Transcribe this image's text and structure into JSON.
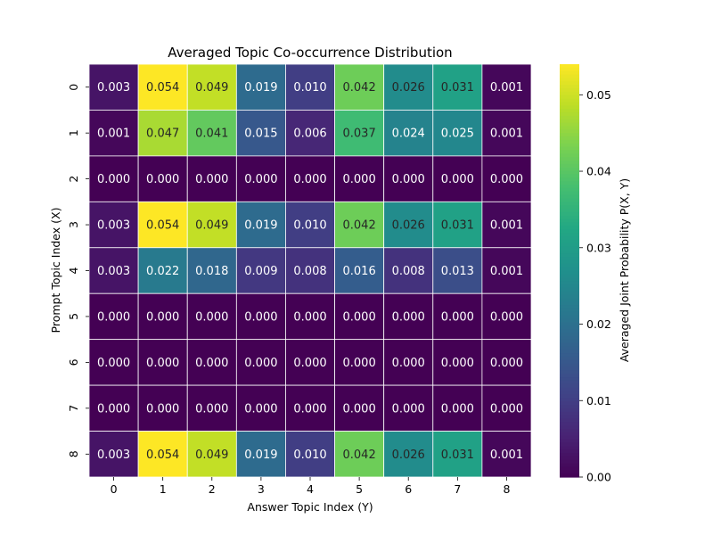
{
  "chart_data": {
    "type": "heatmap",
    "title": "Averaged Topic Co-occurrence Distribution",
    "xlabel": "Answer Topic Index (Y)",
    "ylabel": "Prompt Topic Index (X)",
    "x_categories": [
      "0",
      "1",
      "2",
      "3",
      "4",
      "5",
      "6",
      "7",
      "8"
    ],
    "y_categories": [
      "0",
      "1",
      "2",
      "3",
      "4",
      "5",
      "6",
      "7",
      "8"
    ],
    "values": [
      [
        0.003,
        0.054,
        0.049,
        0.019,
        0.01,
        0.042,
        0.026,
        0.031,
        0.001
      ],
      [
        0.001,
        0.047,
        0.041,
        0.015,
        0.006,
        0.037,
        0.024,
        0.025,
        0.001
      ],
      [
        0.0,
        0.0,
        0.0,
        0.0,
        0.0,
        0.0,
        0.0,
        0.0,
        0.0
      ],
      [
        0.003,
        0.054,
        0.049,
        0.019,
        0.01,
        0.042,
        0.026,
        0.031,
        0.001
      ],
      [
        0.003,
        0.022,
        0.018,
        0.009,
        0.008,
        0.016,
        0.008,
        0.013,
        0.001
      ],
      [
        0.0,
        0.0,
        0.0,
        0.0,
        0.0,
        0.0,
        0.0,
        0.0,
        0.0
      ],
      [
        0.0,
        0.0,
        0.0,
        0.0,
        0.0,
        0.0,
        0.0,
        0.0,
        0.0
      ],
      [
        0.0,
        0.0,
        0.0,
        0.0,
        0.0,
        0.0,
        0.0,
        0.0,
        0.0
      ],
      [
        0.003,
        0.054,
        0.049,
        0.019,
        0.01,
        0.042,
        0.026,
        0.031,
        0.001
      ]
    ],
    "value_format_decimals": 3,
    "colormap": "viridis",
    "vmin": 0.0,
    "vmax": 0.054,
    "colorbar": {
      "label": "Averaged Joint Probability P(X, Y)",
      "ticks": [
        0.0,
        0.01,
        0.02,
        0.03,
        0.04,
        0.05
      ],
      "tick_labels": [
        "0.00",
        "0.01",
        "0.02",
        "0.03",
        "0.04",
        "0.05"
      ]
    },
    "cell_border_color": "#ffffff",
    "annotation_dark_text_color": "#262626",
    "annotation_light_text_color": "#ffffff"
  }
}
